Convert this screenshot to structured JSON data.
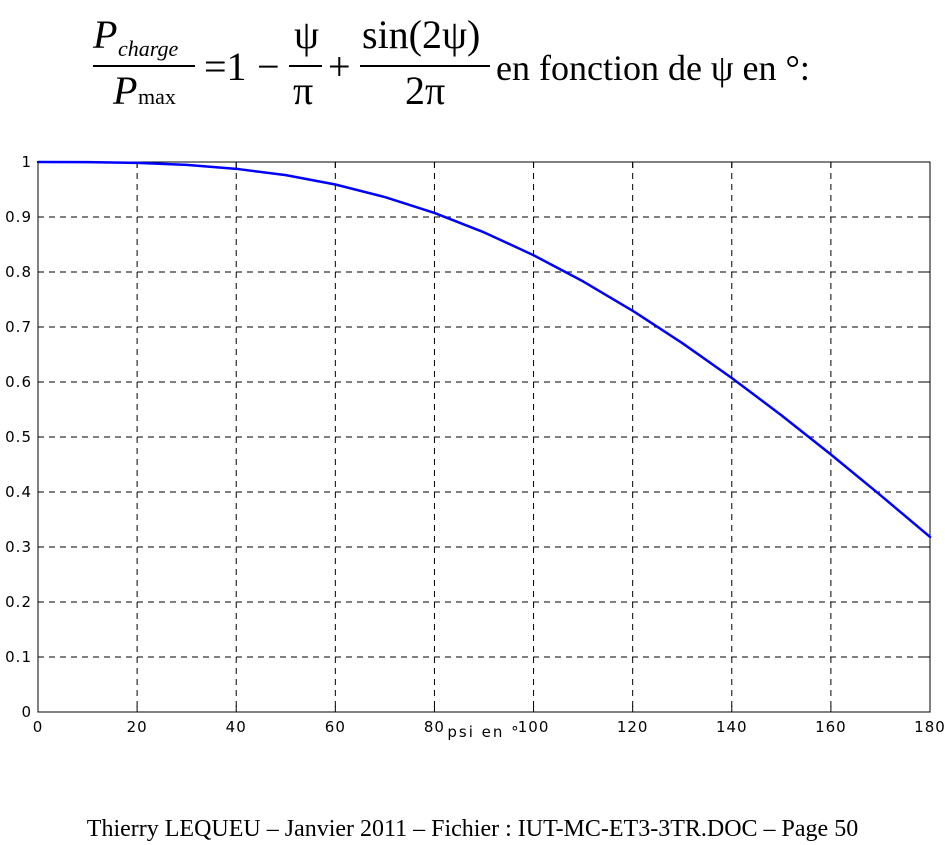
{
  "formula": {
    "lhs_num_symbol": "P",
    "lhs_num_subscript": "charge",
    "lhs_den_symbol": "P",
    "lhs_den_subscript": "max",
    "equals_one": "=1",
    "minus": "−",
    "psi": "ψ",
    "pi": "π",
    "plus": "+",
    "sin_num": "sin(2ψ)",
    "two_pi": "2π",
    "tail_text": "en fonction de ψ en °:"
  },
  "chart_data": {
    "type": "line",
    "title": "",
    "xlabel": "psi en °",
    "ylabel": "",
    "xlim": [
      0,
      180
    ],
    "ylim": [
      0,
      1
    ],
    "xticks": [
      0,
      20,
      40,
      60,
      80,
      100,
      120,
      140,
      160,
      180
    ],
    "yticks": [
      0,
      0.1,
      0.2,
      0.3,
      0.4,
      0.5,
      0.6,
      0.7,
      0.8,
      0.9,
      1
    ],
    "xtick_labels": [
      "0",
      "20",
      "40",
      "60",
      "80",
      "100",
      "120",
      "140",
      "160",
      "180"
    ],
    "ytick_labels": [
      "0",
      "0.1",
      "0.2",
      "0.3",
      "0.4",
      "0.5",
      "0.6",
      "0.7",
      "0.8",
      "0.9",
      "1"
    ],
    "grid": true,
    "legend": "none",
    "series": [
      {
        "color": "#0000ff",
        "x": [
          0,
          10,
          20,
          30,
          40,
          50,
          60,
          70,
          80,
          90,
          100,
          110,
          120,
          130,
          140,
          150,
          160,
          170,
          180
        ],
        "values": [
          1.0,
          0.9998,
          0.9984,
          0.9947,
          0.9876,
          0.9761,
          0.9591,
          0.9363,
          0.9074,
          0.8721,
          0.8305,
          0.7829,
          0.7295,
          0.6708,
          0.6073,
          0.5395,
          0.4682,
          0.3942,
          0.3183
        ]
      }
    ]
  },
  "footer": {
    "text": "Thierry LEQUEU – Janvier 2011 – Fichier : IUT-MC-ET3-3TR.DOC – Page 50"
  }
}
